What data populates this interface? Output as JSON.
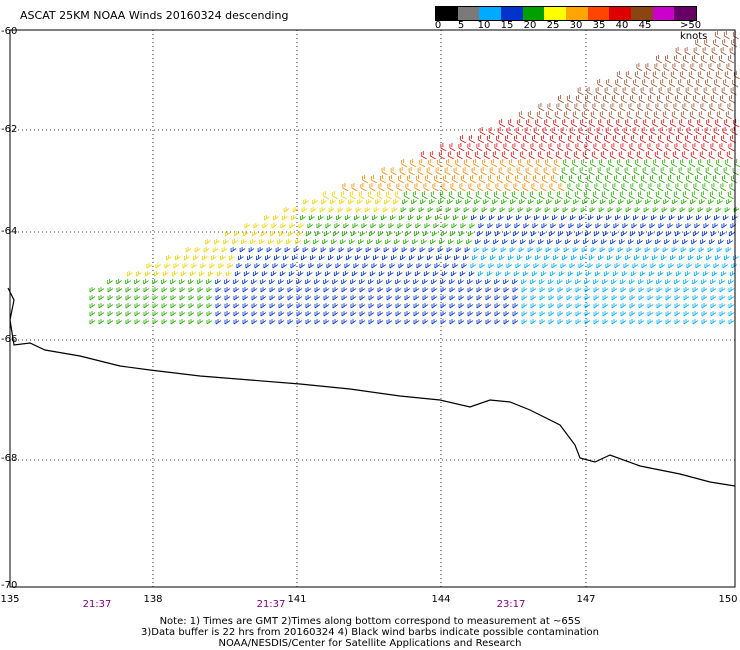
{
  "title": "ASCAT 25KM NOAA Winds 20160324 descending",
  "legend": {
    "colors": [
      "#000000",
      "#7a7a7a",
      "#00aaff",
      "#0033cc",
      "#00a000",
      "#ffff00",
      "#ffa500",
      "#ff4500",
      "#dc0000",
      "#8b4513",
      "#cc00cc",
      "#660066"
    ],
    "labels": [
      "0",
      "5",
      "10",
      "15",
      "20",
      "25",
      "30",
      "35",
      "40",
      "45",
      ">50 knots"
    ]
  },
  "lat_labels": [
    "-60",
    "-62",
    "-64",
    "-66",
    "-68",
    "-70"
  ],
  "lon_labels": [
    "135",
    "138",
    "141",
    "144",
    "147",
    "150"
  ],
  "time_labels": [
    "21:37",
    "21:37",
    "23:17"
  ],
  "notes": {
    "line1": "Note: 1) Times are GMT 2)Times along bottom correspond to measurement at ~65S",
    "line2": "3)Data buffer is 22 hrs from 20160324 4) Black wind barbs indicate possible contamination",
    "line3": "NOAA/NESDIS/Center for Satellite Applications and Research"
  }
}
